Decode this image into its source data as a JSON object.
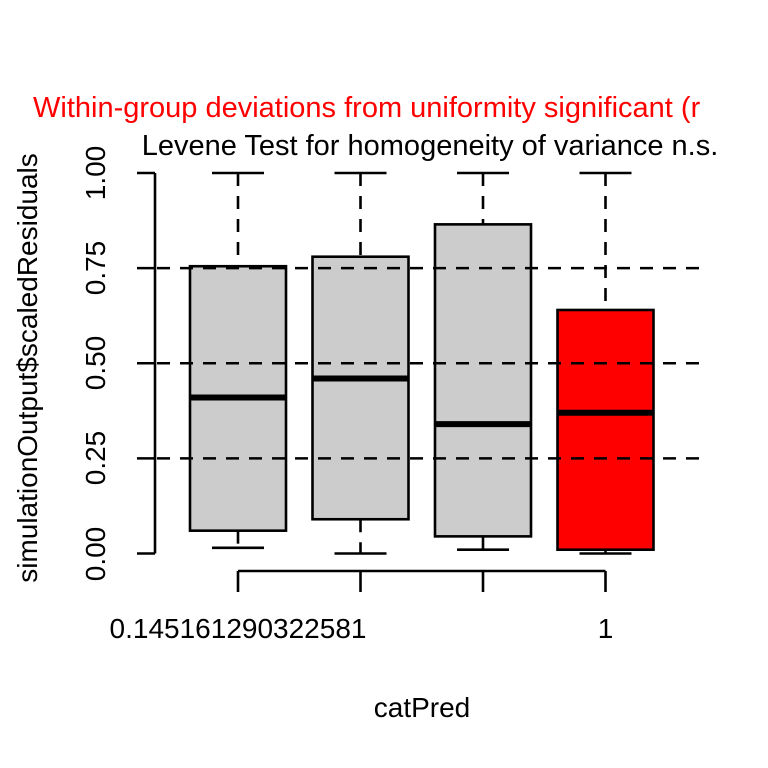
{
  "figure": {
    "title_text": "Within-group deviations from uniformity significant (r",
    "title_color": "#FF0000",
    "subtitle": "Levene Test for homogeneity of variance n.s.",
    "x_axis_label": "catPred",
    "y_axis_label": "simulationOutput$scaledResiduals"
  },
  "colors": {
    "significant_red": "#FF0000",
    "box_gray": "#CCCCCC",
    "line_black": "#000000",
    "background": "#FFFFFF"
  },
  "chart_data": {
    "type": "boxplot",
    "title": "Within-group deviations from uniformity significant (r",
    "subtitle": "Levene Test for homogeneity of variance n.s.",
    "xlabel": "catPred",
    "ylabel": "simulationOutput$scaledResiduals",
    "ylim": [
      0,
      1
    ],
    "y_ticks": [
      0,
      0.25,
      0.5,
      0.75,
      1
    ],
    "y_tick_labels": [
      "0.00",
      "0.25",
      "0.50",
      "0.75",
      "1.00"
    ],
    "x_tick_labels": [
      "0.145161290322581",
      "",
      "",
      "1"
    ],
    "gridlines_y": [
      0.25,
      0.5,
      0.75
    ],
    "grid_style": "dashed",
    "legend": "none",
    "groups": [
      {
        "whisker_low": 0.015,
        "q1": 0.06,
        "median": 0.41,
        "q3": 0.755,
        "whisker_high": 1.0,
        "fill": "#CCCCCC",
        "significant": false
      },
      {
        "whisker_low": 0.0,
        "q1": 0.09,
        "median": 0.46,
        "q3": 0.78,
        "whisker_high": 1.0,
        "fill": "#CCCCCC",
        "significant": false
      },
      {
        "whisker_low": 0.01,
        "q1": 0.045,
        "median": 0.34,
        "q3": 0.865,
        "whisker_high": 1.0,
        "fill": "#CCCCCC",
        "significant": false
      },
      {
        "whisker_low": 0.0,
        "q1": 0.01,
        "median": 0.37,
        "q3": 0.64,
        "whisker_high": 1.0,
        "fill": "#FF0000",
        "significant": true
      }
    ]
  }
}
